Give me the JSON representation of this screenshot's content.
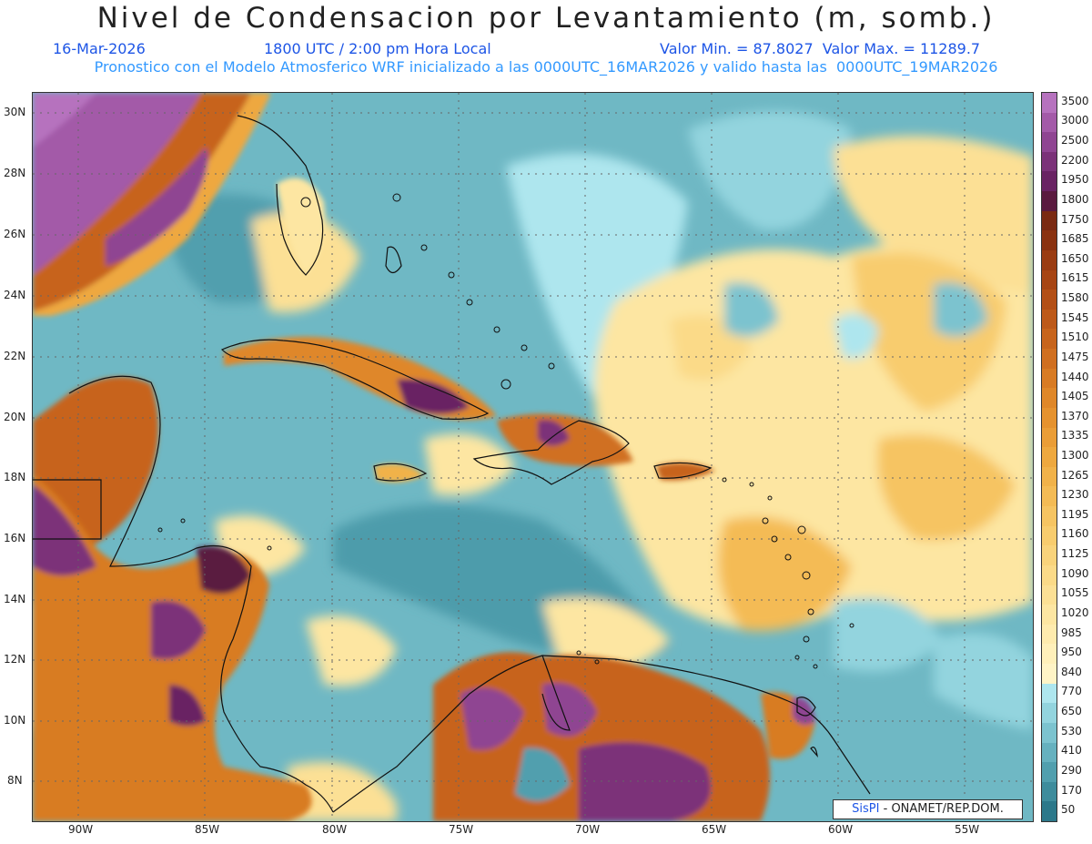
{
  "header": {
    "title": "Nivel de Condensacion por Levantamiento (m, somb.)",
    "date": "16-Mar-2026",
    "time": "1800 UTC / 2:00 pm Hora Local",
    "minmax": "Valor Min. = 87.8027  Valor Max. = 11289.7",
    "forecast_note": "Pronostico con el Modelo Atmosferico WRF inicializado a las 0000UTC_16MAR2026 y valido hasta las  0000UTC_19MAR2026"
  },
  "map": {
    "lon_labels": [
      "90W",
      "85W",
      "80W",
      "75W",
      "70W",
      "65W",
      "60W",
      "55W"
    ],
    "lat_labels": [
      "30N",
      "28N",
      "26N",
      "24N",
      "22N",
      "20N",
      "18N",
      "16N",
      "14N",
      "12N",
      "10N",
      "8N"
    ]
  },
  "legend": {
    "levels": [
      {
        "label": "3500",
        "color": "#b672be"
      },
      {
        "label": "3000",
        "color": "#a35aa8"
      },
      {
        "label": "2500",
        "color": "#8f4592"
      },
      {
        "label": "2200",
        "color": "#7b3279"
      },
      {
        "label": "1950",
        "color": "#692363"
      },
      {
        "label": "1800",
        "color": "#5a1a3f"
      },
      {
        "label": "1750",
        "color": "#7a2a12"
      },
      {
        "label": "1685",
        "color": "#8a3210"
      },
      {
        "label": "1650",
        "color": "#9a3c12"
      },
      {
        "label": "1615",
        "color": "#a74514"
      },
      {
        "label": "1580",
        "color": "#b34f16"
      },
      {
        "label": "1545",
        "color": "#bd5919"
      },
      {
        "label": "1510",
        "color": "#c7641c"
      },
      {
        "label": "1475",
        "color": "#d06f20"
      },
      {
        "label": "1440",
        "color": "#d87b24"
      },
      {
        "label": "1405",
        "color": "#df8729"
      },
      {
        "label": "1370",
        "color": "#e5922f"
      },
      {
        "label": "1335",
        "color": "#ea9d37"
      },
      {
        "label": "1300",
        "color": "#eea83f"
      },
      {
        "label": "1265",
        "color": "#f1b24a"
      },
      {
        "label": "1230",
        "color": "#f4bb55"
      },
      {
        "label": "1195",
        "color": "#f6c462"
      },
      {
        "label": "1160",
        "color": "#f8cc6e"
      },
      {
        "label": "1125",
        "color": "#f9d37b"
      },
      {
        "label": "1090",
        "color": "#fbda88"
      },
      {
        "label": "1055",
        "color": "#fce095"
      },
      {
        "label": "1020",
        "color": "#fde6a2"
      },
      {
        "label": "985",
        "color": "#feebae"
      },
      {
        "label": "950",
        "color": "#fff0ba"
      },
      {
        "label": "840",
        "color": "#fff4c6"
      },
      {
        "label": "770",
        "color": "#aee6ee"
      },
      {
        "label": "650",
        "color": "#93d4de"
      },
      {
        "label": "530",
        "color": "#7cc3cf"
      },
      {
        "label": "410",
        "color": "#66b1bf"
      },
      {
        "label": "290",
        "color": "#519fae"
      },
      {
        "label": "170",
        "color": "#3e8c9c"
      },
      {
        "label": "50",
        "color": "#2c788a"
      }
    ]
  },
  "credit": {
    "brand": "SisPI",
    "text": " - ONAMET/REP.DOM."
  }
}
